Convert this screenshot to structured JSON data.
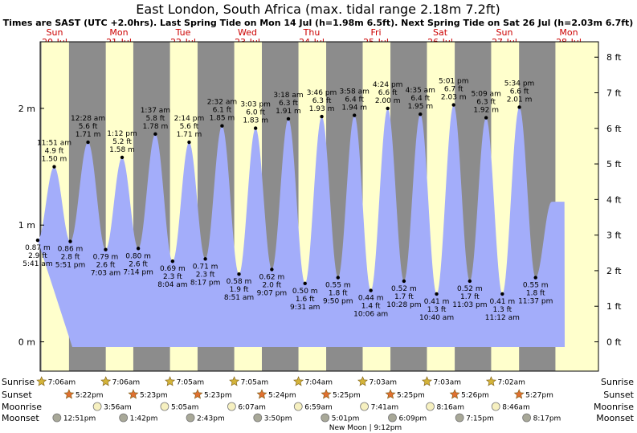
{
  "title": "East London, South Africa (max. tidal range 2.18m 7.2ft)",
  "subtitle": "Times are SAST (UTC +2.0hrs). Last Spring Tide on Mon 14 Jul (h=1.98m 6.5ft). Next Spring Tide on Sat 26 Jul (h=2.03m 6.7ft)",
  "row_labels": {
    "sunrise": "Sunrise",
    "sunset": "Sunset",
    "moonrise": "Moonrise",
    "moonset": "Moonset"
  },
  "colors": {
    "night": "#8c8c8c",
    "day": "#ffffcc",
    "tide_fill": "#a3adfa",
    "day_label": "#cc0000",
    "star_rise": "#d4b43a",
    "star_set": "#e07030",
    "moonrise": "#f6f0c0",
    "moonset": "#a8a898"
  },
  "chart_data": {
    "type": "area",
    "days": [
      {
        "dow": "Sun",
        "date": "20-Jul",
        "sunrise": "7:06am",
        "sunset": "5:22pm",
        "moonrise": "",
        "moonset": "12:51pm"
      },
      {
        "dow": "Mon",
        "date": "21-Jul",
        "sunrise": "7:06am",
        "sunset": "5:23pm",
        "moonrise": "3:56am",
        "moonset": "1:42pm"
      },
      {
        "dow": "Tue",
        "date": "22-Jul",
        "sunrise": "7:05am",
        "sunset": "5:23pm",
        "moonrise": "5:05am",
        "moonset": "2:43pm"
      },
      {
        "dow": "Wed",
        "date": "23-Jul",
        "sunrise": "7:05am",
        "sunset": "5:24pm",
        "moonrise": "6:07am",
        "moonset": "3:50pm"
      },
      {
        "dow": "Thu",
        "date": "24-Jul",
        "sunrise": "7:04am",
        "sunset": "5:25pm",
        "moonrise": "6:59am",
        "moonset": "5:01pm"
      },
      {
        "dow": "Fri",
        "date": "25-Jul",
        "sunrise": "7:03am",
        "sunset": "5:25pm",
        "moonrise": "7:41am",
        "moonset": "6:09pm"
      },
      {
        "dow": "Sat",
        "date": "26-Jul",
        "sunrise": "7:03am",
        "sunset": "5:26pm",
        "moonrise": "8:16am",
        "moonset": "7:15pm"
      },
      {
        "dow": "Sun",
        "date": "27-Jul",
        "sunrise": "7:02am",
        "sunset": "5:27pm",
        "moonrise": "8:46am",
        "moonset": "8:17pm"
      },
      {
        "dow": "Mon",
        "date": "28-Jul",
        "sunrise": "",
        "sunset": "",
        "moonrise": "",
        "moonset": ""
      }
    ],
    "moon_note": "New Moon | 9:12pm",
    "y_left": {
      "ticks": [
        "0 m",
        "1 m",
        "2 m"
      ],
      "values": [
        0,
        1,
        2
      ]
    },
    "y_right": {
      "ticks": [
        "0 ft",
        "1 ft",
        "2 ft",
        "3 ft",
        "4 ft",
        "5 ft",
        "6 ft",
        "7 ft",
        "8 ft"
      ],
      "values": [
        0,
        1,
        2,
        3,
        4,
        5,
        6,
        7,
        8
      ]
    },
    "ylim_m": [
      -0.08,
      2.58
    ],
    "tides": [
      {
        "day": 0,
        "time": "5:41 am",
        "m": 0.87,
        "m_label": "0.87 m",
        "ft_label": "2.9 ft",
        "type": "low"
      },
      {
        "day": 0,
        "time": "11:51 am",
        "m": 1.5,
        "m_label": "1.50 m",
        "ft_label": "4.9 ft",
        "type": "high"
      },
      {
        "day": 0,
        "time": "5:51 pm",
        "m": 0.86,
        "m_label": "0.86 m",
        "ft_label": "2.8 ft",
        "type": "low"
      },
      {
        "day": 1,
        "time": "12:28 am",
        "m": 1.71,
        "m_label": "1.71 m",
        "ft_label": "5.6 ft",
        "type": "high"
      },
      {
        "day": 1,
        "time": "7:03 am",
        "m": 0.79,
        "m_label": "0.79 m",
        "ft_label": "2.6 ft",
        "type": "low"
      },
      {
        "day": 1,
        "time": "1:12 pm",
        "m": 1.58,
        "m_label": "1.58 m",
        "ft_label": "5.2 ft",
        "type": "high"
      },
      {
        "day": 1,
        "time": "7:14 pm",
        "m": 0.8,
        "m_label": "0.80 m",
        "ft_label": "2.6 ft",
        "type": "low"
      },
      {
        "day": 2,
        "time": "1:37 am",
        "m": 1.78,
        "m_label": "1.78 m",
        "ft_label": "5.8 ft",
        "type": "high"
      },
      {
        "day": 2,
        "time": "8:04 am",
        "m": 0.69,
        "m_label": "0.69 m",
        "ft_label": "2.3 ft",
        "type": "low"
      },
      {
        "day": 2,
        "time": "2:14 pm",
        "m": 1.71,
        "m_label": "1.71 m",
        "ft_label": "5.6 ft",
        "type": "high"
      },
      {
        "day": 2,
        "time": "8:17 pm",
        "m": 0.71,
        "m_label": "0.71 m",
        "ft_label": "2.3 ft",
        "type": "low"
      },
      {
        "day": 3,
        "time": "2:32 am",
        "m": 1.85,
        "m_label": "1.85 m",
        "ft_label": "6.1 ft",
        "type": "high"
      },
      {
        "day": 3,
        "time": "8:51 am",
        "m": 0.58,
        "m_label": "0.58 m",
        "ft_label": "1.9 ft",
        "type": "low"
      },
      {
        "day": 3,
        "time": "3:03 pm",
        "m": 1.83,
        "m_label": "1.83 m",
        "ft_label": "6.0 ft",
        "type": "high"
      },
      {
        "day": 3,
        "time": "9:07 pm",
        "m": 0.62,
        "m_label": "0.62 m",
        "ft_label": "2.0 ft",
        "type": "low"
      },
      {
        "day": 4,
        "time": "3:18 am",
        "m": 1.91,
        "m_label": "1.91 m",
        "ft_label": "6.3 ft",
        "type": "high"
      },
      {
        "day": 4,
        "time": "9:31 am",
        "m": 0.5,
        "m_label": "0.50 m",
        "ft_label": "1.6 ft",
        "type": "low"
      },
      {
        "day": 4,
        "time": "3:46 pm",
        "m": 1.93,
        "m_label": "1.93 m",
        "ft_label": "6.3 ft",
        "type": "high"
      },
      {
        "day": 4,
        "time": "9:50 pm",
        "m": 0.55,
        "m_label": "0.55 m",
        "ft_label": "1.8 ft",
        "type": "low"
      },
      {
        "day": 5,
        "time": "3:58 am",
        "m": 1.94,
        "m_label": "1.94 m",
        "ft_label": "6.4 ft",
        "type": "high"
      },
      {
        "day": 5,
        "time": "10:06 am",
        "m": 0.44,
        "m_label": "0.44 m",
        "ft_label": "1.4 ft",
        "type": "low"
      },
      {
        "day": 5,
        "time": "4:24 pm",
        "m": 2.0,
        "m_label": "2.00 m",
        "ft_label": "6.6 ft",
        "type": "high"
      },
      {
        "day": 5,
        "time": "10:28 pm",
        "m": 0.52,
        "m_label": "0.52 m",
        "ft_label": "1.7 ft",
        "type": "low"
      },
      {
        "day": 6,
        "time": "4:35 am",
        "m": 1.95,
        "m_label": "1.95 m",
        "ft_label": "6.4 ft",
        "type": "high"
      },
      {
        "day": 6,
        "time": "10:40 am",
        "m": 0.41,
        "m_label": "0.41 m",
        "ft_label": "1.3 ft",
        "type": "low"
      },
      {
        "day": 6,
        "time": "5:01 pm",
        "m": 2.03,
        "m_label": "2.03 m",
        "ft_label": "6.7 ft",
        "type": "high"
      },
      {
        "day": 6,
        "time": "11:03 pm",
        "m": 0.52,
        "m_label": "0.52 m",
        "ft_label": "1.7 ft",
        "type": "low"
      },
      {
        "day": 7,
        "time": "5:09 am",
        "m": 1.92,
        "m_label": "1.92 m",
        "ft_label": "6.3 ft",
        "type": "high"
      },
      {
        "day": 7,
        "time": "11:12 am",
        "m": 0.41,
        "m_label": "0.41 m",
        "ft_label": "1.3 ft",
        "type": "low"
      },
      {
        "day": 7,
        "time": "5:34 pm",
        "m": 2.01,
        "m_label": "2.01 m",
        "ft_label": "6.6 ft",
        "type": "high"
      },
      {
        "day": 7,
        "time": "11:37 pm",
        "m": 0.55,
        "m_label": "0.55 m",
        "ft_label": "1.8 ft",
        "type": "low"
      }
    ]
  }
}
